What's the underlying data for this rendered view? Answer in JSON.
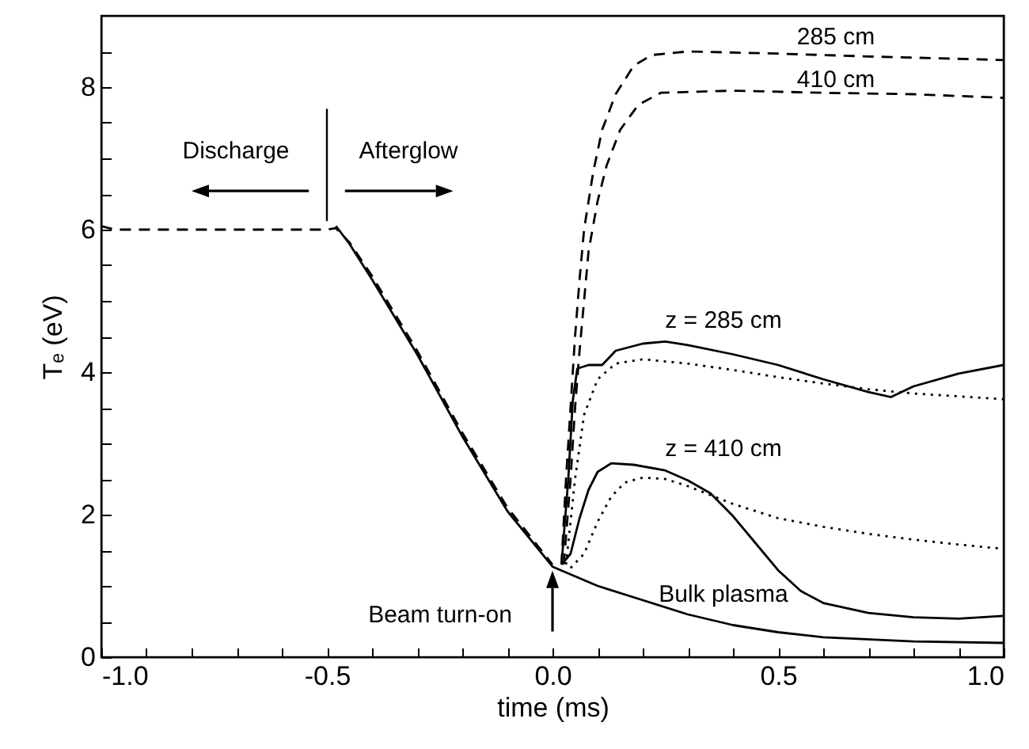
{
  "chart_data": {
    "type": "line",
    "xlabel": "time (ms)",
    "ylabel": "Tₑ (eV)",
    "xlim": [
      -1.0,
      1.0
    ],
    "xticks": [
      {
        "value": -1.0,
        "label": "-1.0"
      },
      {
        "value": -0.9,
        "label": null
      },
      {
        "value": -0.8,
        "label": null
      },
      {
        "value": -0.7,
        "label": null
      },
      {
        "value": -0.6,
        "label": null
      },
      {
        "value": -0.5,
        "label": "-0.5"
      },
      {
        "value": -0.4,
        "label": null
      },
      {
        "value": -0.3,
        "label": null
      },
      {
        "value": -0.2,
        "label": null
      },
      {
        "value": -0.1,
        "label": null
      },
      {
        "value": 0,
        "label": "0.0"
      },
      {
        "value": 0.1,
        "label": null
      },
      {
        "value": 0.2,
        "label": null
      },
      {
        "value": 0.3,
        "label": null
      },
      {
        "value": 0.4,
        "label": null
      },
      {
        "value": 0.5,
        "label": "0.5"
      },
      {
        "value": 0.6,
        "label": null
      },
      {
        "value": 0.7,
        "label": null
      },
      {
        "value": 0.8,
        "label": null
      },
      {
        "value": 0.9,
        "label": null
      },
      {
        "value": 1.0,
        "label": "1.0"
      }
    ],
    "ylim": [
      0,
      9
    ],
    "yticks": [
      0,
      {
        "value": 0.5,
        "label": null
      },
      {
        "value": 1,
        "label": null
      },
      {
        "value": 1.5,
        "label": null
      },
      2,
      {
        "value": 2.5,
        "label": null
      },
      {
        "value": 3,
        "label": null
      },
      {
        "value": 3.5,
        "label": null
      },
      4,
      {
        "value": 4.5,
        "label": null
      },
      {
        "value": 5,
        "label": null
      },
      {
        "value": 5.5,
        "label": null
      },
      6,
      {
        "value": 6.5,
        "label": null
      },
      {
        "value": 7,
        "label": null
      },
      {
        "value": 7.5,
        "label": null
      },
      8,
      {
        "value": 8.5,
        "label": null
      }
    ],
    "grid": false,
    "series": [
      {
        "color": "#000000",
        "line_style": "dashed",
        "x": [
          -1.0,
          -0.97,
          -0.9,
          -0.7,
          -0.5,
          -0.48,
          -0.45,
          -0.4,
          -0.3,
          -0.2,
          -0.1,
          0.0
        ],
        "values": [
          6.05,
          6.0,
          6.0,
          6.0,
          6.0,
          6.02,
          5.82,
          5.35,
          4.3,
          3.15,
          2.1,
          1.3
        ]
      },
      {
        "color": "#000000",
        "line_style": "solid",
        "x": [
          -0.48,
          -0.45,
          -0.4,
          -0.3,
          -0.2,
          -0.1,
          0.0,
          0.1,
          0.2,
          0.3,
          0.4,
          0.5,
          0.6,
          0.8,
          1.0
        ],
        "values": [
          6.05,
          5.8,
          5.3,
          4.25,
          3.1,
          2.05,
          1.27,
          1.0,
          0.8,
          0.6,
          0.45,
          0.35,
          0.28,
          0.22,
          0.2
        ]
      },
      {
        "color": "#000000",
        "line_style": "dashed",
        "x": [
          0.02,
          0.03,
          0.04,
          0.05,
          0.06,
          0.07,
          0.09,
          0.11,
          0.14,
          0.18,
          0.22,
          0.3,
          0.5,
          0.7,
          1.0
        ],
        "values": [
          1.3,
          2.5,
          3.5,
          4.5,
          5.3,
          6.0,
          6.8,
          7.4,
          7.9,
          8.3,
          8.45,
          8.5,
          8.47,
          8.43,
          8.38
        ]
      },
      {
        "color": "#000000",
        "line_style": "dashed",
        "x": [
          0.025,
          0.04,
          0.05,
          0.06,
          0.07,
          0.08,
          0.1,
          0.12,
          0.15,
          0.19,
          0.24,
          0.4,
          0.6,
          0.8,
          1.0
        ],
        "values": [
          1.3,
          2.5,
          3.5,
          4.3,
          5.0,
          5.7,
          6.4,
          6.9,
          7.4,
          7.75,
          7.92,
          7.95,
          7.92,
          7.9,
          7.85
        ]
      },
      {
        "color": "#000000",
        "line_style": "solid",
        "x": [
          0.02,
          0.035,
          0.045,
          0.055,
          0.08,
          0.11,
          0.14,
          0.2,
          0.25,
          0.3,
          0.4,
          0.5,
          0.6,
          0.7,
          0.75,
          0.8,
          0.9,
          1.0
        ],
        "values": [
          1.3,
          2.5,
          3.6,
          4.05,
          4.1,
          4.1,
          4.3,
          4.4,
          4.43,
          4.38,
          4.25,
          4.1,
          3.9,
          3.72,
          3.65,
          3.8,
          3.98,
          4.1
        ]
      },
      {
        "color": "#000000",
        "line_style": "dotted",
        "x": [
          0.03,
          0.05,
          0.07,
          0.1,
          0.14,
          0.2,
          0.3,
          0.4,
          0.5,
          0.6,
          0.7,
          0.8,
          0.9,
          1.0
        ],
        "values": [
          1.3,
          2.5,
          3.4,
          3.9,
          4.12,
          4.18,
          4.12,
          4.03,
          3.93,
          3.84,
          3.76,
          3.7,
          3.66,
          3.62
        ]
      },
      {
        "color": "#000000",
        "line_style": "solid",
        "x": [
          0.02,
          0.04,
          0.06,
          0.08,
          0.1,
          0.13,
          0.18,
          0.25,
          0.3,
          0.35,
          0.4,
          0.45,
          0.5,
          0.55,
          0.6,
          0.7,
          0.8,
          0.9,
          1.0
        ],
        "values": [
          1.3,
          1.45,
          1.95,
          2.35,
          2.6,
          2.72,
          2.7,
          2.62,
          2.48,
          2.3,
          1.98,
          1.6,
          1.22,
          0.93,
          0.76,
          0.62,
          0.56,
          0.54,
          0.58
        ]
      },
      {
        "color": "#000000",
        "line_style": "dotted",
        "x": [
          0.04,
          0.07,
          0.1,
          0.13,
          0.16,
          0.2,
          0.25,
          0.3,
          0.4,
          0.5,
          0.6,
          0.7,
          0.8,
          0.9,
          1.0
        ],
        "values": [
          1.25,
          1.45,
          1.9,
          2.25,
          2.45,
          2.52,
          2.5,
          2.4,
          2.15,
          1.95,
          1.83,
          1.73,
          1.65,
          1.58,
          1.52
        ]
      }
    ],
    "ref_lines": [
      {
        "axis": "x",
        "value": -0.5
      }
    ],
    "annotations": [
      "285 cm",
      "410 cm",
      "Discharge",
      "Afterglow",
      "z = 285 cm",
      "z = 410 cm",
      "Bulk plasma",
      "Beam turn-on"
    ]
  }
}
